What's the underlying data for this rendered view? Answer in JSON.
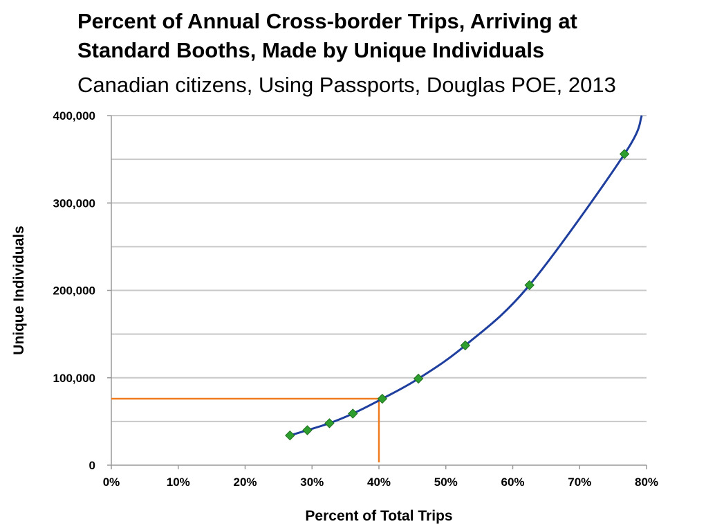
{
  "chart_data": {
    "type": "line",
    "title_line1": "Percent of Annual Cross-border Trips, Arriving at",
    "title_line2": "Standard Booths, Made by Unique Individuals",
    "subtitle": "Canadian citizens, Using Passports, Douglas POE, 2013",
    "xlabel": "Percent of Total Trips",
    "ylabel": "Unique Individuals",
    "xlim": [
      0,
      80
    ],
    "ylim": [
      0,
      400000
    ],
    "x_ticks": [
      "0%",
      "10%",
      "20%",
      "30%",
      "40%",
      "50%",
      "60%",
      "70%",
      "80%"
    ],
    "y_ticks": [
      "0",
      "100,000",
      "200,000",
      "300,000",
      "400,000"
    ],
    "x_tick_values": [
      0,
      10,
      20,
      30,
      40,
      50,
      60,
      70,
      80
    ],
    "y_tick_values": [
      0,
      100000,
      200000,
      300000,
      400000
    ],
    "gridlines_y": [
      50000,
      100000,
      150000,
      200000,
      250000,
      300000,
      350000,
      400000
    ],
    "grid": "horizontal",
    "series": [
      {
        "points": [
          {
            "x": 26.7,
            "y": 34000
          },
          {
            "x": 29.3,
            "y": 40000
          },
          {
            "x": 32.6,
            "y": 48000
          },
          {
            "x": 36.1,
            "y": 59000
          },
          {
            "x": 40.5,
            "y": 76000
          },
          {
            "x": 45.9,
            "y": 99000
          },
          {
            "x": 52.9,
            "y": 137000
          },
          {
            "x": 62.5,
            "y": 206000
          },
          {
            "x": 76.7,
            "y": 356000
          }
        ],
        "curve_end": {
          "x": 79.3,
          "y": 400000
        },
        "line_color": "#1f3f9f",
        "marker_color": "#2e9e2e",
        "marker": "diamond"
      }
    ],
    "reference_lines": {
      "color": "#f07a1e",
      "x": 40,
      "y": 76000
    }
  }
}
